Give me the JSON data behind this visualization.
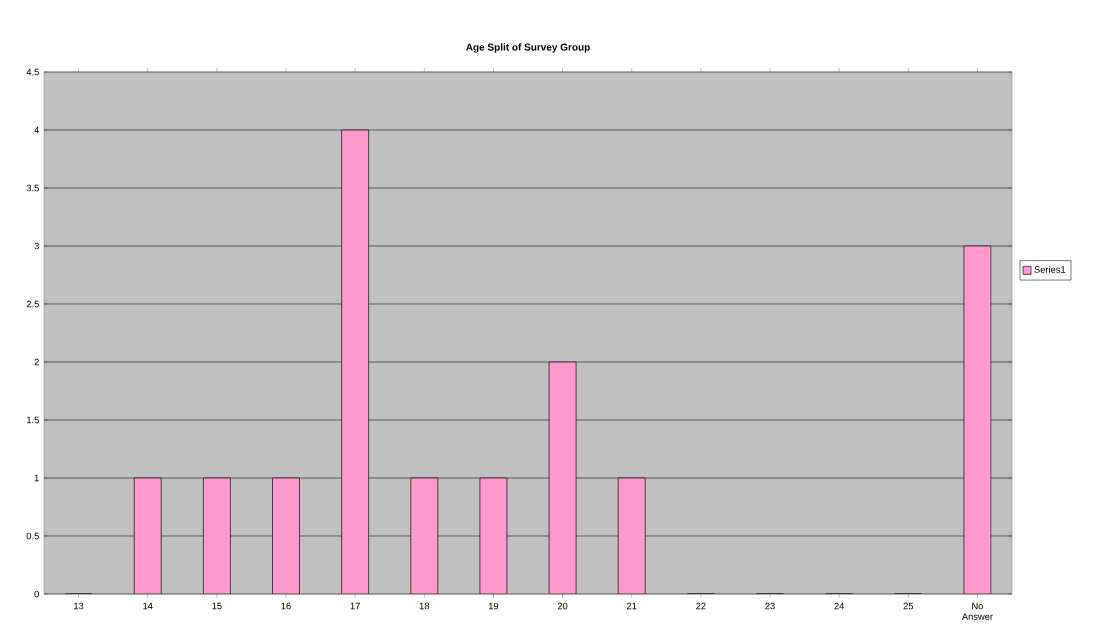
{
  "chart_data": {
    "type": "bar",
    "title": "Age Split of Survey Group",
    "categories": [
      "13",
      "14",
      "15",
      "16",
      "17",
      "18",
      "19",
      "20",
      "21",
      "22",
      "23",
      "24",
      "25",
      "No Answer"
    ],
    "series": [
      {
        "name": "Series1",
        "color": "#ff99cc",
        "values": [
          0,
          1,
          1,
          1,
          4,
          1,
          1,
          2,
          1,
          0,
          0,
          0,
          0,
          3
        ]
      }
    ],
    "ylim": [
      0,
      4.5
    ],
    "yticks": [
      0,
      0.5,
      1,
      1.5,
      2,
      2.5,
      3,
      3.5,
      4,
      4.5
    ],
    "grid": "y",
    "legend": "right"
  }
}
